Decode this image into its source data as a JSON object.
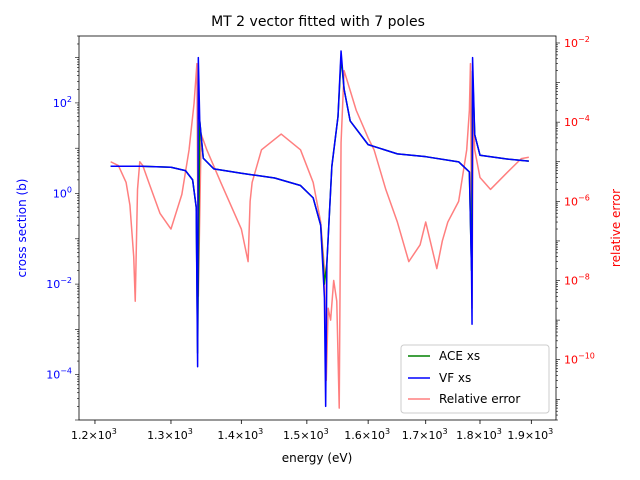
{
  "chart_data": {
    "type": "line",
    "title": "MT 2 vector fitted with 7 poles",
    "xlabel": "energy (eV)",
    "ylabel_left": "cross section (b)",
    "ylabel_right": "relative error",
    "x_scale": "log",
    "y_left_scale": "log",
    "y_right_scale": "log",
    "xlim": [
      1180,
      1950
    ],
    "ylim_left": [
      1e-05,
      3000
    ],
    "ylim_right": [
      3e-12,
      0.015
    ],
    "x_ticks": [
      {
        "value": 1200,
        "mant": "1.2",
        "exp": "3"
      },
      {
        "value": 1300,
        "mant": "1.3",
        "exp": "3"
      },
      {
        "value": 1400,
        "mant": "1.4",
        "exp": "3"
      },
      {
        "value": 1500,
        "mant": "1.5",
        "exp": "3"
      },
      {
        "value": 1600,
        "mant": "1.6",
        "exp": "3"
      },
      {
        "value": 1700,
        "mant": "1.7",
        "exp": "3"
      },
      {
        "value": 1800,
        "mant": "1.8",
        "exp": "3"
      },
      {
        "value": 1900,
        "mant": "1.9",
        "exp": "3"
      }
    ],
    "y_left_ticks": [
      {
        "value": 0.0001,
        "exp": "−4"
      },
      {
        "value": 0.01,
        "exp": "−2"
      },
      {
        "value": 1,
        "exp": "0"
      },
      {
        "value": 100,
        "exp": "2"
      }
    ],
    "y_right_ticks": [
      {
        "value": 1e-10,
        "exp": "−10"
      },
      {
        "value": 1e-08,
        "exp": "−8"
      },
      {
        "value": 1e-06,
        "exp": "−6"
      },
      {
        "value": 0.0001,
        "exp": "−4"
      },
      {
        "value": 0.01,
        "exp": "−2"
      }
    ],
    "series": [
      {
        "name": "ACE xs",
        "color": "#008000",
        "axis": "left",
        "x": [
          1220,
          1260,
          1300,
          1320,
          1330,
          1335,
          1337,
          1340,
          1345,
          1360,
          1400,
          1450,
          1490,
          1510,
          1522,
          1528,
          1532,
          1540,
          1550,
          1555,
          1560,
          1570,
          1600,
          1650,
          1700,
          1760,
          1780,
          1784,
          1786,
          1790,
          1800,
          1850,
          1895
        ],
        "y": [
          4.0,
          4.0,
          3.8,
          3.2,
          2.0,
          0.5,
          0.0003,
          40,
          6,
          3.5,
          2.8,
          2.2,
          1.5,
          0.8,
          0.2,
          0.01,
          0.03,
          4,
          50,
          1000,
          200,
          40,
          12,
          7.5,
          6.5,
          5.0,
          3,
          0.02,
          500,
          20,
          7,
          5.8,
          5.2
        ]
      },
      {
        "name": "VF xs",
        "color": "#0000ff",
        "axis": "left",
        "x": [
          1220,
          1260,
          1300,
          1320,
          1330,
          1335,
          1337,
          1338,
          1340,
          1345,
          1360,
          1400,
          1450,
          1490,
          1510,
          1522,
          1528,
          1530,
          1532,
          1540,
          1550,
          1555,
          1560,
          1570,
          1600,
          1650,
          1700,
          1760,
          1780,
          1784,
          1785,
          1786,
          1790,
          1800,
          1850,
          1895
        ],
        "y": [
          4.0,
          4.0,
          3.8,
          3.2,
          2.0,
          0.5,
          0.00015,
          1000,
          40,
          6,
          3.5,
          2.8,
          2.2,
          1.5,
          0.8,
          0.2,
          0.005,
          2e-05,
          0.03,
          4,
          50,
          1400,
          200,
          40,
          12,
          7.5,
          6.5,
          5.0,
          3,
          0.02,
          0.0013,
          1000,
          20,
          7,
          5.8,
          5.2
        ]
      },
      {
        "name": "Relative error",
        "color": "#ff0000",
        "alpha": 0.5,
        "axis": "right",
        "x": [
          1220,
          1230,
          1240,
          1245,
          1250,
          1252,
          1255,
          1258,
          1262,
          1270,
          1285,
          1300,
          1315,
          1325,
          1332,
          1336,
          1338,
          1342,
          1350,
          1370,
          1400,
          1410,
          1413,
          1416,
          1430,
          1460,
          1490,
          1510,
          1522,
          1528,
          1531,
          1534,
          1538,
          1543,
          1548,
          1552,
          1555,
          1560,
          1580,
          1600,
          1610,
          1630,
          1650,
          1670,
          1690,
          1700,
          1720,
          1730,
          1740,
          1760,
          1775,
          1780,
          1782,
          1785,
          1787,
          1790,
          1800,
          1820,
          1850,
          1880,
          1895
        ],
        "y": [
          1e-05,
          8e-06,
          3e-06,
          8e-07,
          4e-08,
          3e-09,
          2e-06,
          1e-05,
          8e-06,
          3e-06,
          5e-07,
          2e-07,
          1.5e-06,
          2e-05,
          0.0003,
          0.003,
          4e-09,
          5e-05,
          2e-05,
          3e-06,
          2e-07,
          3e-08,
          1e-06,
          3e-06,
          2e-05,
          5e-05,
          2e-05,
          3e-06,
          3e-07,
          2e-08,
          3e-11,
          2e-09,
          1e-09,
          1e-08,
          3e-09,
          6e-12,
          3e-05,
          0.002,
          0.0002,
          4e-05,
          2e-05,
          2e-06,
          3e-07,
          3e-08,
          8e-08,
          3e-07,
          2e-08,
          1e-07,
          3e-07,
          1e-06,
          2e-05,
          0.0002,
          0.003,
          2e-09,
          0.0002,
          2e-05,
          4e-06,
          2e-06,
          5e-06,
          1.2e-05,
          1.3e-05
        ]
      }
    ],
    "legend": {
      "position": "lower-right"
    }
  }
}
